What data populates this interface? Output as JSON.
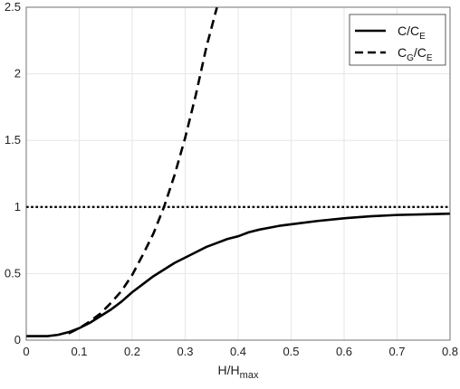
{
  "chart_data": {
    "type": "line",
    "xlabel": {
      "main": "H/H",
      "sub": "max"
    },
    "ylabel": "",
    "xlim": [
      0,
      0.8
    ],
    "ylim": [
      0,
      2.5
    ],
    "xticks": [
      0,
      0.1,
      0.2,
      0.3,
      0.4,
      0.5,
      0.6,
      0.7,
      0.8
    ],
    "yticks": [
      0,
      0.5,
      1,
      1.5,
      2,
      2.5
    ],
    "grid": true,
    "legend_position": "top-right",
    "series": [
      {
        "name": "C/C_E",
        "label": {
          "a": "C/C",
          "a_sub": "E",
          "b": "",
          "b_sub": ""
        },
        "style": "solid",
        "color": "#000000",
        "x": [
          0,
          0.02,
          0.04,
          0.06,
          0.08,
          0.1,
          0.12,
          0.14,
          0.16,
          0.18,
          0.2,
          0.22,
          0.24,
          0.26,
          0.28,
          0.3,
          0.32,
          0.34,
          0.36,
          0.38,
          0.4,
          0.42,
          0.44,
          0.46,
          0.48,
          0.5,
          0.55,
          0.6,
          0.65,
          0.7,
          0.75,
          0.8
        ],
        "y": [
          0.03,
          0.03,
          0.03,
          0.04,
          0.06,
          0.09,
          0.13,
          0.18,
          0.23,
          0.29,
          0.36,
          0.42,
          0.48,
          0.53,
          0.58,
          0.62,
          0.66,
          0.7,
          0.73,
          0.76,
          0.78,
          0.81,
          0.83,
          0.845,
          0.86,
          0.87,
          0.895,
          0.915,
          0.93,
          0.94,
          0.945,
          0.95
        ]
      },
      {
        "name": "C_G/C_E",
        "label": {
          "a": "C",
          "a_sub": "G",
          "b": "/C",
          "b_sub": "E"
        },
        "style": "dashed",
        "color": "#000000",
        "x": [
          0.08,
          0.1,
          0.12,
          0.14,
          0.16,
          0.18,
          0.2,
          0.22,
          0.24,
          0.26,
          0.28,
          0.3,
          0.32,
          0.34,
          0.36
        ],
        "y": [
          0.05,
          0.09,
          0.14,
          0.2,
          0.28,
          0.37,
          0.49,
          0.64,
          0.8,
          1,
          1.24,
          1.52,
          1.84,
          2.2,
          2.5
        ]
      },
      {
        "name": "",
        "style": "dotted",
        "color": "#000000",
        "x": [
          0,
          0.8
        ],
        "y": [
          1,
          1
        ]
      }
    ]
  }
}
